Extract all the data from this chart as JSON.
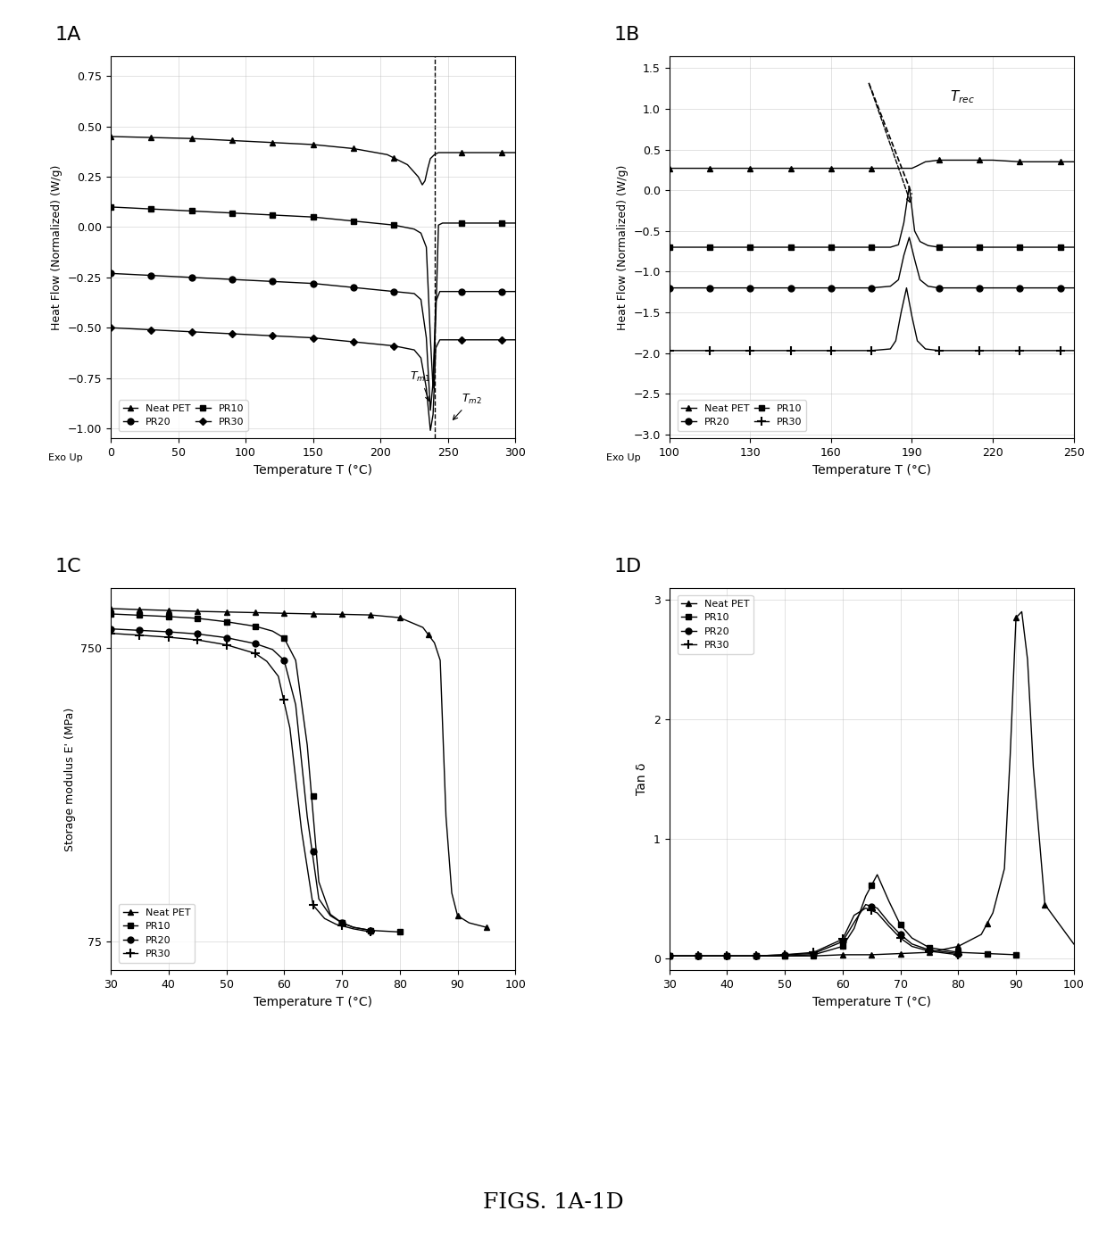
{
  "fig_width": 12.4,
  "fig_height": 13.94,
  "background_color": "#ffffff",
  "panel_A": {
    "xlabel": "Temperature T (°C)",
    "ylabel": "Heat Flow (Normalized) (W/g)",
    "xlim": [
      0,
      300
    ],
    "ylim": [
      -1.05,
      0.85
    ],
    "xticks": [
      0,
      50,
      100,
      150,
      200,
      250,
      300
    ],
    "yticks": [
      -1.0,
      -0.75,
      -0.5,
      -0.25,
      0.0,
      0.25,
      0.5,
      0.75
    ]
  },
  "panel_B": {
    "xlabel": "Temperature T (°C)",
    "ylabel": "Heat Flow (Normalized) (W/g)",
    "xlim": [
      100,
      250
    ],
    "ylim": [
      -3.05,
      1.65
    ],
    "xticks": [
      100,
      130,
      160,
      190,
      220,
      250
    ],
    "yticks": [
      -3.0,
      -2.5,
      -2.0,
      -1.5,
      -1.0,
      -0.5,
      0.0,
      0.5,
      1.0,
      1.5
    ]
  },
  "panel_C": {
    "xlabel": "Temperature T (°C)",
    "ylabel": "Storage modulus E' (MPa)",
    "xlim": [
      30,
      100
    ],
    "xticks": [
      30,
      40,
      50,
      60,
      70,
      80,
      90,
      100
    ],
    "yticks": [
      75,
      750
    ],
    "yticklabels": [
      "75",
      "750"
    ]
  },
  "panel_D": {
    "xlabel": "Temperature T (°C)",
    "ylabel": "Tan δ",
    "xlim": [
      30,
      100
    ],
    "ylim": [
      -0.1,
      3.1
    ],
    "xticks": [
      30,
      40,
      50,
      60,
      70,
      80,
      90,
      100
    ],
    "yticks": [
      0,
      1,
      2,
      3
    ]
  },
  "marker_size": 5,
  "line_width": 1.0,
  "color": "#000000",
  "grid_color": "#bbbbbb",
  "grid_alpha": 0.6
}
